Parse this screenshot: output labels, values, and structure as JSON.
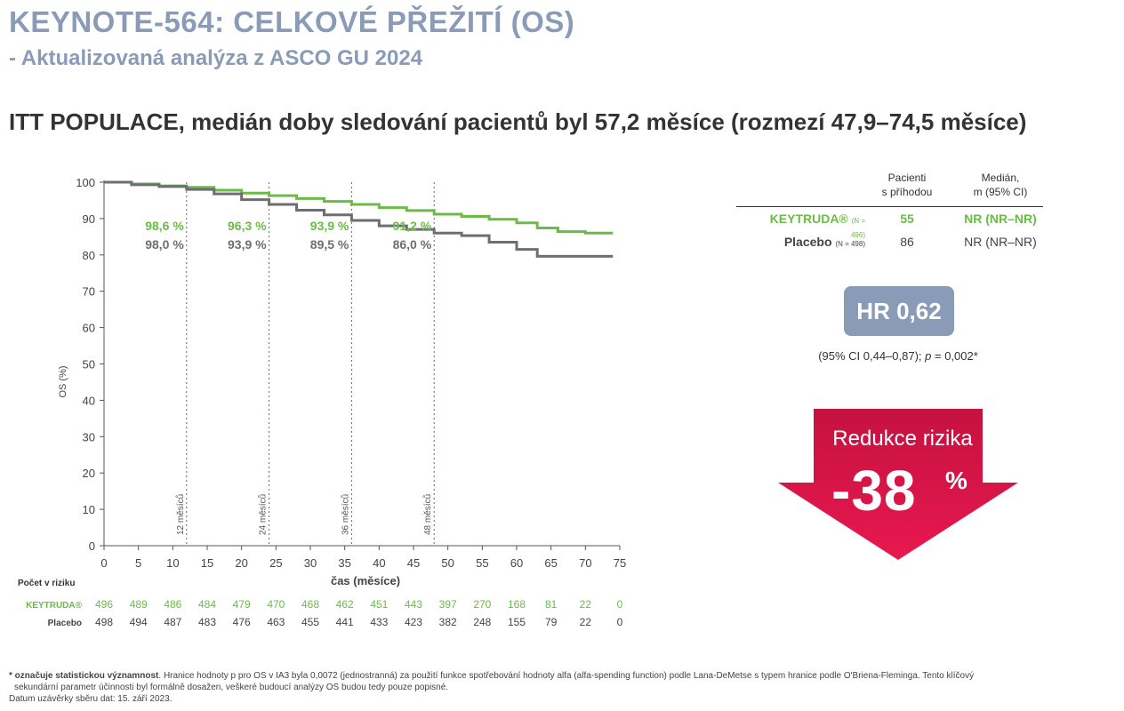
{
  "header": {
    "title": "KEYNOTE-564: CELKOVÉ PŘEŽITÍ (OS)",
    "subtitle": "- Aktualizovaná analýza z ASCO GU 2024",
    "heading": "ITT POPULACE, medián doby sledování pacientů byl 57,2 měsíce (rozmezí 47,9–74,5 měsíce)"
  },
  "colors": {
    "keytruda": "#6cbb47",
    "placebo": "#6d6e71",
    "accent": "#8a9bb8",
    "arrow": "#e31b54"
  },
  "chart_data": {
    "type": "line",
    "ylabel": "OS (%)",
    "xlabel": "čas (měsíce)",
    "xlim": [
      0,
      75
    ],
    "ylim": [
      0,
      100
    ],
    "x_ticks": [
      0,
      5,
      10,
      15,
      20,
      25,
      30,
      35,
      40,
      45,
      50,
      55,
      60,
      65,
      70,
      75
    ],
    "y_ticks": [
      0,
      10,
      20,
      30,
      40,
      50,
      60,
      70,
      80,
      90,
      100
    ],
    "landmarks": [
      {
        "x": 12,
        "label": "12 měsíců",
        "keytruda": "98,6 %",
        "placebo": "98,0 %"
      },
      {
        "x": 24,
        "label": "24 měsíců",
        "keytruda": "96,3 %",
        "placebo": "93,9 %"
      },
      {
        "x": 36,
        "label": "36 měsíců",
        "keytruda": "93,9 %",
        "placebo": "89,5 %"
      },
      {
        "x": 48,
        "label": "48 měsíců",
        "keytruda": "91,2 %",
        "placebo": "86,0 %"
      }
    ],
    "series": [
      {
        "name": "KEYTRUDA®",
        "color": "#6cbb47",
        "x": [
          0,
          4,
          8,
          12,
          16,
          20,
          24,
          28,
          32,
          36,
          40,
          44,
          48,
          52,
          56,
          60,
          63,
          66,
          70,
          74
        ],
        "y": [
          100,
          99.5,
          99.0,
          98.6,
          97.8,
          97.0,
          96.3,
          95.5,
          94.7,
          93.9,
          93.0,
          92.2,
          91.2,
          90.6,
          89.8,
          88.8,
          87.4,
          86.4,
          86.0,
          86.0
        ]
      },
      {
        "name": "Placebo",
        "color": "#6d6e71",
        "x": [
          0,
          4,
          8,
          12,
          16,
          20,
          24,
          28,
          32,
          36,
          40,
          44,
          48,
          52,
          56,
          60,
          63,
          66,
          70,
          74
        ],
        "y": [
          100,
          99.3,
          98.8,
          98.0,
          96.8,
          95.2,
          93.9,
          92.3,
          91.0,
          89.5,
          88.0,
          87.0,
          86.0,
          85.3,
          83.5,
          81.5,
          79.6,
          79.6,
          79.6,
          79.6
        ]
      }
    ],
    "risk_table": {
      "title": "Počet v riziku",
      "rows": [
        {
          "label": "KEYTRUDA®",
          "values": [
            "496",
            "489",
            "486",
            "484",
            "479",
            "470",
            "468",
            "462",
            "451",
            "443",
            "397",
            "270",
            "168",
            "81",
            "22",
            "0"
          ]
        },
        {
          "label": "Placebo",
          "values": [
            "498",
            "494",
            "487",
            "483",
            "476",
            "463",
            "455",
            "441",
            "433",
            "423",
            "382",
            "248",
            "155",
            "79",
            "22",
            "0"
          ]
        }
      ]
    }
  },
  "stats": {
    "col1": [
      "Pacienti",
      "s příhodou"
    ],
    "col2": [
      "Medián,",
      "m (95% CI)"
    ],
    "rows": [
      {
        "name": "KEYTRUDA®",
        "n": "(N = 496)",
        "events": "55",
        "median": "NR (NR–NR)"
      },
      {
        "name": "Placebo",
        "n": "(N = 498)",
        "events": "86",
        "median": "NR (NR–NR)"
      }
    ]
  },
  "hr": {
    "label": "HR 0,62",
    "ci_pre": "(95% CI 0,44–0,87); ",
    "ci_p": "p",
    "ci_post": " = 0,002*"
  },
  "reduction": {
    "label": "Redukce rizika",
    "value": "-38",
    "unit": "%"
  },
  "footnote": {
    "bold": "* označuje statistickou významnost",
    "text1": ". Hranice hodnoty p pro OS v IA3 byla 0,0072 (jednostranná) za použití funkce spotřebování hodnoty alfa (alfa-spending function) podle Lana-DeMetse s typem hranice podle O'Briena-Fleminga. Tento klíčový",
    "text2": "sekundární parametr účinnosti byl formálně dosažen, veškeré budoucí analýzy OS budou tedy pouze popisné.",
    "text3": "Datum uzávěrky sběru dat: 15. září 2023."
  }
}
